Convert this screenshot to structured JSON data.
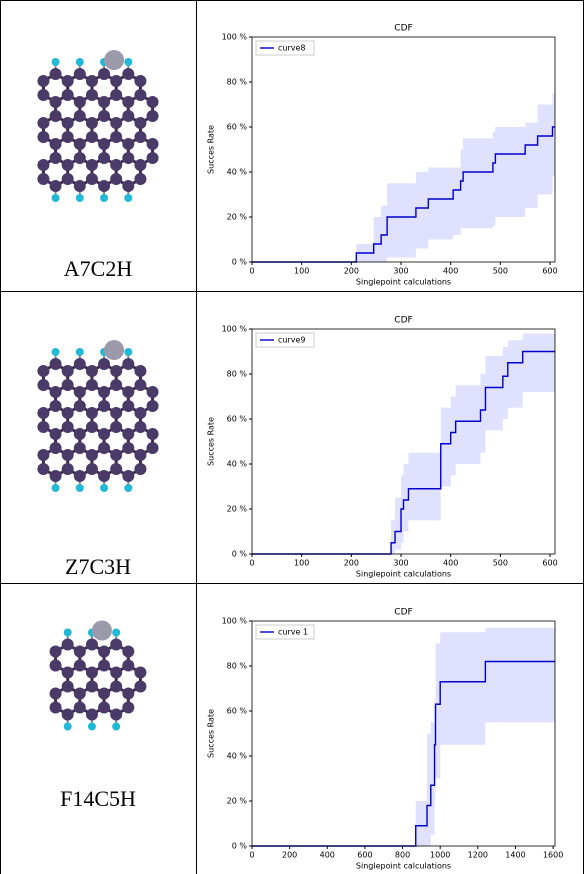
{
  "labels": [
    "A7C2H",
    "Z7C3H",
    "F14C5H"
  ],
  "chart_data": [
    {
      "type": "step",
      "title": "CDF",
      "x_label": "Singlepoint calculations",
      "y_label": "Succes Rate",
      "x": [
        0,
        210,
        245,
        260,
        272,
        330,
        355,
        405,
        420,
        425,
        485,
        490,
        550,
        575,
        605
      ],
      "series": [
        {
          "name": "curve8",
          "color": "#0000cc",
          "values": [
            0,
            4,
            8,
            12,
            20,
            24,
            28,
            32,
            36,
            40,
            44,
            48,
            52,
            56,
            60
          ]
        }
      ],
      "band_lower": [
        0,
        0,
        0,
        0,
        2,
        6,
        10,
        12,
        15,
        15,
        16,
        20,
        24,
        30,
        38
      ],
      "band_upper": [
        0,
        8,
        20,
        25,
        35,
        40,
        42,
        42,
        50,
        55,
        58,
        60,
        62,
        70,
        75
      ],
      "band_color": "#ccccff",
      "xlim": [
        0,
        610
      ],
      "ylim": [
        0,
        100
      ],
      "xticks": [
        0,
        100,
        200,
        300,
        400,
        500,
        600
      ],
      "yticks": [
        {
          "value": 0,
          "label": "0 %"
        },
        {
          "value": 20,
          "label": "20 %"
        },
        {
          "value": 40,
          "label": "40 %"
        },
        {
          "value": 60,
          "label": "60 %"
        },
        {
          "value": 80,
          "label": "80 %"
        },
        {
          "value": 100,
          "label": "100 %"
        }
      ],
      "legend": "upper left"
    },
    {
      "type": "step",
      "title": "CDF",
      "x_label": "Singlepoint calculations",
      "y_label": "Succes Rate",
      "x": [
        0,
        280,
        288,
        300,
        305,
        315,
        380,
        400,
        410,
        460,
        470,
        505,
        515,
        545
      ],
      "series": [
        {
          "name": "curve9",
          "color": "#0000cc",
          "values": [
            0,
            5,
            10,
            20,
            24,
            29,
            49,
            54,
            59,
            64,
            74,
            79,
            85,
            90
          ]
        }
      ],
      "band_lower": [
        0,
        0,
        2,
        5,
        10,
        15,
        30,
        35,
        40,
        45,
        55,
        60,
        65,
        72
      ],
      "band_upper": [
        0,
        15,
        25,
        35,
        40,
        45,
        65,
        70,
        75,
        80,
        88,
        92,
        95,
        98
      ],
      "band_color": "#ccccff",
      "xlim": [
        0,
        610
      ],
      "ylim": [
        0,
        100
      ],
      "xticks": [
        0,
        100,
        200,
        300,
        400,
        500,
        600
      ],
      "yticks": [
        {
          "value": 0,
          "label": "0 %"
        },
        {
          "value": 20,
          "label": "20 %"
        },
        {
          "value": 40,
          "label": "40 %"
        },
        {
          "value": 60,
          "label": "60 %"
        },
        {
          "value": 80,
          "label": "80 %"
        },
        {
          "value": 100,
          "label": "100 %"
        }
      ],
      "legend": "upper left"
    },
    {
      "type": "step",
      "title": "CDF",
      "x_label": "Singlepoint calculations",
      "y_label": "Succes Rate",
      "x": [
        0,
        870,
        930,
        950,
        970,
        975,
        1000,
        1240
      ],
      "series": [
        {
          "name": "curve 1",
          "color": "#0000cc",
          "values": [
            0,
            9,
            18,
            27,
            45,
            63,
            73,
            82
          ]
        }
      ],
      "band_lower": [
        0,
        0,
        0,
        5,
        20,
        30,
        45,
        55
      ],
      "band_upper": [
        0,
        20,
        50,
        55,
        65,
        90,
        95,
        97
      ],
      "band_color": "#ccccff",
      "xlim": [
        0,
        1610
      ],
      "ylim": [
        0,
        100
      ],
      "xticks": [
        0,
        200,
        400,
        600,
        800,
        1000,
        1200,
        1400,
        1600
      ],
      "yticks": [
        {
          "value": 0,
          "label": "0 %"
        },
        {
          "value": 20,
          "label": "20 %"
        },
        {
          "value": 40,
          "label": "40 %"
        },
        {
          "value": 60,
          "label": "60 %"
        },
        {
          "value": 80,
          "label": "80 %"
        },
        {
          "value": 100,
          "label": "100 %"
        }
      ],
      "legend": "upper left"
    }
  ]
}
